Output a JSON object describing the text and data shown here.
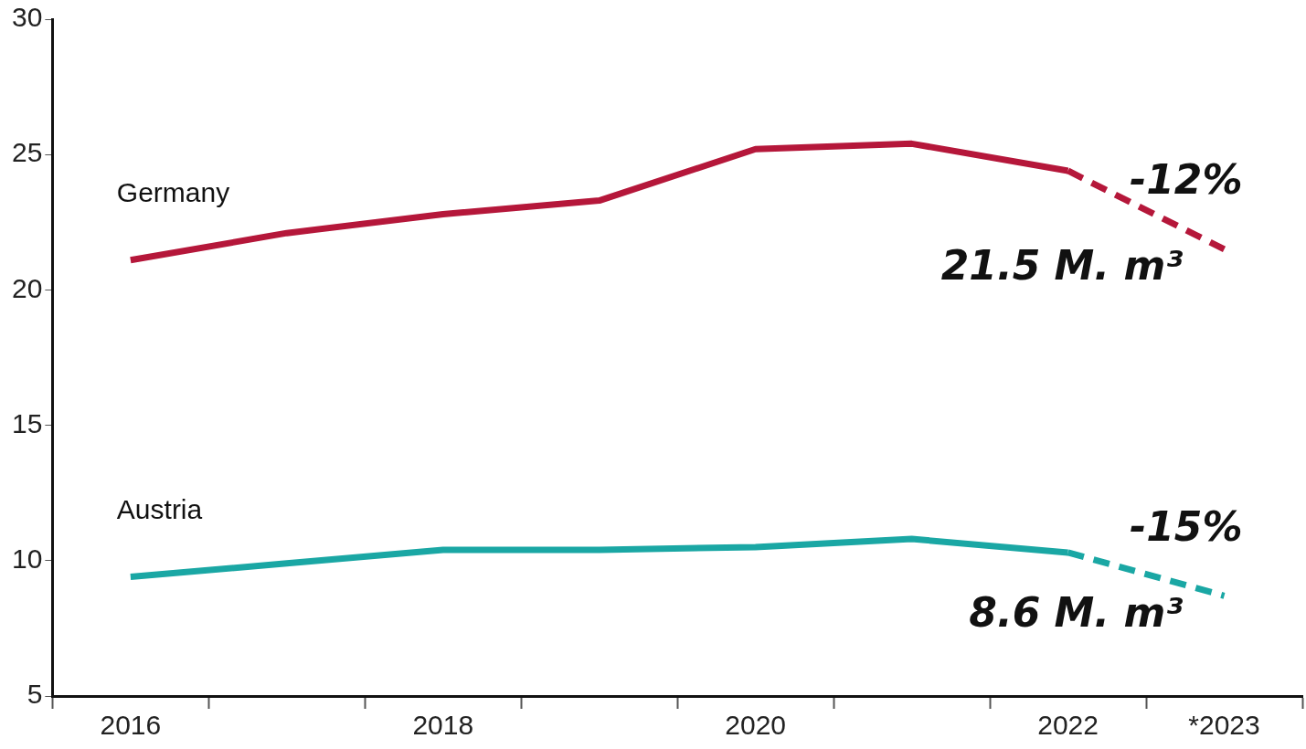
{
  "chart_data": {
    "type": "line",
    "categories": [
      "2016",
      null,
      "2018",
      null,
      "2020",
      null,
      "2022",
      "*2023"
    ],
    "series": [
      {
        "name": "Germany",
        "color": "#b5173a",
        "line_style": "solid",
        "values": [
          21.1,
          22.1,
          22.8,
          23.3,
          25.2,
          25.4,
          24.4,
          null
        ]
      },
      {
        "color": "#b5173a",
        "line_style": "dashed",
        "values": [
          null,
          null,
          null,
          null,
          null,
          null,
          24.4,
          21.5
        ]
      },
      {
        "name": "Austria",
        "color": "#1aa7a4",
        "line_style": "solid",
        "values": [
          9.4,
          9.9,
          10.4,
          10.4,
          10.5,
          10.8,
          10.3,
          null
        ]
      },
      {
        "color": "#1aa7a4",
        "line_style": "dashed",
        "values": [
          null,
          null,
          null,
          null,
          null,
          null,
          10.3,
          8.7
        ]
      }
    ],
    "ylim": [
      5,
      30
    ],
    "yticks": [
      5,
      10,
      15,
      20,
      25,
      30
    ],
    "grid": false,
    "legend": false,
    "marker": "none",
    "annotations": [
      "-12%",
      "21.5 M. m³",
      "-15%",
      "8.6 M. m³"
    ]
  }
}
